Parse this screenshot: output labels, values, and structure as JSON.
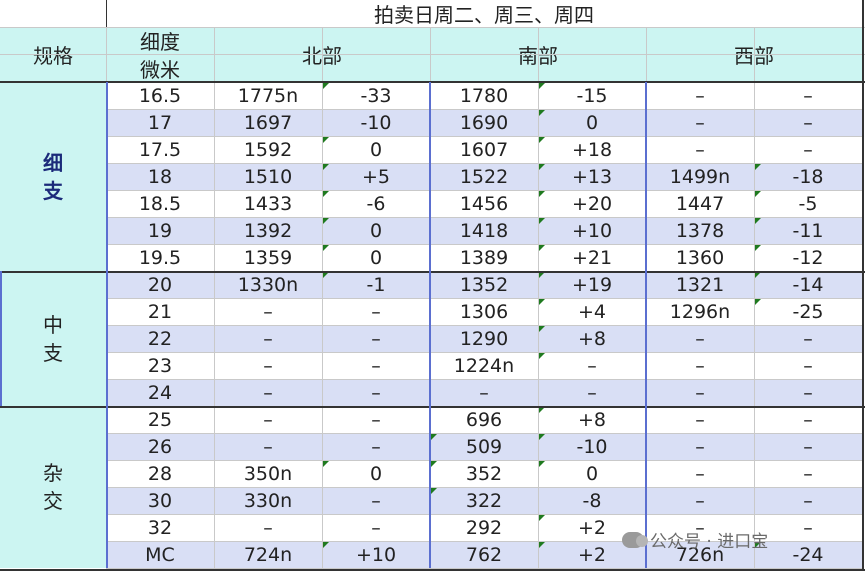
{
  "title": "拍卖日周二、周三、周四",
  "headers": {
    "spec": "规格",
    "fineness_top": "细度",
    "fineness_bottom": "微米",
    "north": "北部",
    "south": "南部",
    "west": "西部"
  },
  "groups": [
    {
      "label": "细支",
      "rows": 7
    },
    {
      "label": "中支",
      "rows": 5
    },
    {
      "label": "杂交",
      "rows": 6
    }
  ],
  "rows": [
    {
      "micron": "16.5",
      "n": "1775n",
      "nc": "-33",
      "s": "1780",
      "sc": "-15",
      "w": "–",
      "wc": "–"
    },
    {
      "micron": "17",
      "n": "1697",
      "nc": "-10",
      "s": "1690",
      "sc": "0",
      "w": "–",
      "wc": "–"
    },
    {
      "micron": "17.5",
      "n": "1592",
      "nc": "0",
      "s": "1607",
      "sc": "+18",
      "w": "–",
      "wc": "–"
    },
    {
      "micron": "18",
      "n": "1510",
      "nc": "+5",
      "s": "1522",
      "sc": "+13",
      "w": "1499n",
      "wc": "-18"
    },
    {
      "micron": "18.5",
      "n": "1433",
      "nc": "-6",
      "s": "1456",
      "sc": "+20",
      "w": "1447",
      "wc": "-5"
    },
    {
      "micron": "19",
      "n": "1392",
      "nc": "0",
      "s": "1418",
      "sc": "+10",
      "w": "1378",
      "wc": "-11"
    },
    {
      "micron": "19.5",
      "n": "1359",
      "nc": "0",
      "s": "1389",
      "sc": "+21",
      "w": "1360",
      "wc": "-12"
    },
    {
      "micron": "20",
      "n": "1330n",
      "nc": "-1",
      "s": "1352",
      "sc": "+19",
      "w": "1321",
      "wc": "-14"
    },
    {
      "micron": "21",
      "n": "–",
      "nc": "–",
      "s": "1306",
      "sc": "+4",
      "w": "1296n",
      "wc": "-25"
    },
    {
      "micron": "22",
      "n": "–",
      "nc": "–",
      "s": "1290",
      "sc": "+8",
      "w": "–",
      "wc": "–"
    },
    {
      "micron": "23",
      "n": "–",
      "nc": "–",
      "s": "1224n",
      "sc": "–",
      "w": "–",
      "wc": "–"
    },
    {
      "micron": "24",
      "n": "–",
      "nc": "–",
      "s": "–",
      "sc": "–",
      "w": "–",
      "wc": "–"
    },
    {
      "micron": "25",
      "n": "–",
      "nc": "–",
      "s": "696",
      "sc": "+8",
      "w": "–",
      "wc": "–"
    },
    {
      "micron": "26",
      "n": "–",
      "nc": "–",
      "s": "509",
      "sc": "-10",
      "w": "–",
      "wc": "–"
    },
    {
      "micron": "28",
      "n": "350n",
      "nc": "0",
      "s": "352",
      "sc": "0",
      "w": "–",
      "wc": "–"
    },
    {
      "micron": "30",
      "n": "330n",
      "nc": "–",
      "s": "322",
      "sc": "-8",
      "w": "–",
      "wc": "–"
    },
    {
      "micron": "32",
      "n": "–",
      "nc": "–",
      "s": "292",
      "sc": "+2",
      "w": "–",
      "wc": "–"
    },
    {
      "micron": "MC",
      "n": "724n",
      "nc": "+10",
      "s": "762",
      "sc": "+2",
      "w": "726n",
      "wc": "-24"
    }
  ],
  "watermark": "公众号 · 进口宝"
}
